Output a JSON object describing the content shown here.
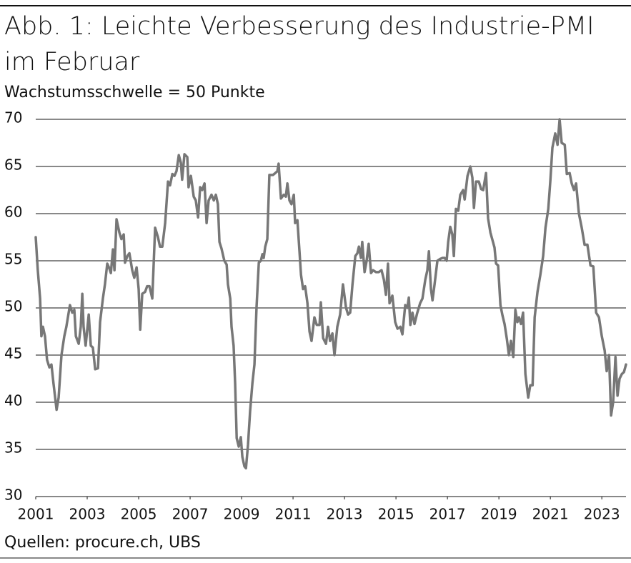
{
  "chart_data": {
    "type": "line",
    "title": "Abb. 1: Leichte Verbesserung des Industrie-PMI im Februar",
    "subtitle": "Wachstumsschwelle = 50 Punkte",
    "source": "Quellen: procure.ch, UBS",
    "color": "#777777",
    "grid": true,
    "xlim": [
      2001,
      2023.94
    ],
    "xticks": [
      2001,
      2003,
      2005,
      2007,
      2009,
      2011,
      2013,
      2015,
      2017,
      2019,
      2021,
      2023
    ],
    "ylim": [
      30,
      70
    ],
    "yticks": [
      30,
      35,
      40,
      45,
      50,
      55,
      60,
      65,
      70
    ],
    "x": [
      2001.0,
      2001.08,
      2001.17,
      2001.22,
      2001.28,
      2001.36,
      2001.44,
      2001.53,
      2001.61,
      2001.69,
      2001.81,
      2001.89,
      2002.0,
      2002.11,
      2002.19,
      2002.28,
      2002.33,
      2002.42,
      2002.5,
      2002.56,
      2002.67,
      2002.75,
      2002.81,
      2002.86,
      2002.94,
      2003.06,
      2003.14,
      2003.22,
      2003.31,
      2003.42,
      2003.5,
      2003.61,
      2003.69,
      2003.78,
      2003.86,
      2003.92,
      2004.0,
      2004.06,
      2004.14,
      2004.25,
      2004.33,
      2004.42,
      2004.47,
      2004.56,
      2004.64,
      2004.75,
      2004.83,
      2004.92,
      2005.0,
      2005.06,
      2005.14,
      2005.25,
      2005.33,
      2005.42,
      2005.53,
      2005.64,
      2005.75,
      2005.83,
      2005.92,
      2006.03,
      2006.14,
      2006.22,
      2006.31,
      2006.39,
      2006.47,
      2006.56,
      2006.64,
      2006.69,
      2006.78,
      2006.89,
      2006.94,
      2007.03,
      2007.14,
      2007.22,
      2007.31,
      2007.39,
      2007.47,
      2007.56,
      2007.64,
      2007.72,
      2007.83,
      2007.92,
      2008.0,
      2008.08,
      2008.14,
      2008.22,
      2008.33,
      2008.42,
      2008.47,
      2008.56,
      2008.61,
      2008.69,
      2008.75,
      2008.81,
      2008.89,
      2008.97,
      2009.03,
      2009.11,
      2009.17,
      2009.25,
      2009.33,
      2009.42,
      2009.5,
      2009.58,
      2009.67,
      2009.75,
      2009.81,
      2009.86,
      2009.92,
      2010.0,
      2010.08,
      2010.22,
      2010.31,
      2010.39,
      2010.44,
      2010.53,
      2010.64,
      2010.72,
      2010.78,
      2010.86,
      2010.94,
      2011.03,
      2011.08,
      2011.17,
      2011.25,
      2011.31,
      2011.39,
      2011.47,
      2011.56,
      2011.64,
      2011.72,
      2011.83,
      2011.92,
      2012.03,
      2012.08,
      2012.17,
      2012.28,
      2012.36,
      2012.44,
      2012.53,
      2012.61,
      2012.72,
      2012.83,
      2012.94,
      2013.06,
      2013.14,
      2013.22,
      2013.31,
      2013.42,
      2013.5,
      2013.56,
      2013.64,
      2013.69,
      2013.78,
      2013.86,
      2013.94,
      2014.03,
      2014.11,
      2014.22,
      2014.33,
      2014.44,
      2014.53,
      2014.61,
      2014.69,
      2014.75,
      2014.86,
      2014.97,
      2015.06,
      2015.17,
      2015.25,
      2015.36,
      2015.44,
      2015.5,
      2015.56,
      2015.64,
      2015.72,
      2015.83,
      2015.94,
      2016.03,
      2016.14,
      2016.22,
      2016.28,
      2016.36,
      2016.42,
      2016.5,
      2016.61,
      2016.72,
      2016.81,
      2016.89,
      2016.97,
      2017.03,
      2017.11,
      2017.19,
      2017.25,
      2017.33,
      2017.42,
      2017.5,
      2017.61,
      2017.67,
      2017.78,
      2017.89,
      2017.97,
      2018.03,
      2018.11,
      2018.22,
      2018.31,
      2018.39,
      2018.5,
      2018.58,
      2018.67,
      2018.75,
      2018.83,
      2018.89,
      2018.97,
      2019.06,
      2019.14,
      2019.22,
      2019.31,
      2019.39,
      2019.47,
      2019.56,
      2019.64,
      2019.72,
      2019.78,
      2019.86,
      2019.94,
      2020.03,
      2020.14,
      2020.22,
      2020.31,
      2020.39,
      2020.5,
      2020.61,
      2020.72,
      2020.81,
      2020.92,
      2021.0,
      2021.08,
      2021.19,
      2021.28,
      2021.36,
      2021.44,
      2021.56,
      2021.64,
      2021.75,
      2021.83,
      2021.92,
      2022.0,
      2022.11,
      2022.22,
      2022.33,
      2022.44,
      2022.56,
      2022.67,
      2022.78,
      2022.89,
      2023.0,
      2023.11,
      2023.19,
      2023.28,
      2023.36,
      2023.44,
      2023.53,
      2023.61,
      2023.69,
      2023.78,
      2023.86,
      2023.94
    ],
    "values": [
      57.5,
      54,
      51,
      47,
      48,
      47,
      44.5,
      43.7,
      44,
      42,
      39.2,
      40.5,
      45,
      47,
      48,
      49.5,
      50.3,
      49.5,
      49.8,
      47,
      46.2,
      48,
      51.5,
      48,
      46,
      49.3,
      46,
      45.8,
      43.5,
      43.6,
      48.5,
      51,
      52.5,
      54.7,
      54.2,
      53.7,
      56.2,
      54,
      59.4,
      58,
      57.3,
      57.8,
      54.8,
      55.5,
      55.8,
      54,
      53.2,
      54.3,
      52,
      47.7,
      51.5,
      51.7,
      52.3,
      52.3,
      51,
      58.5,
      57.5,
      56.5,
      56.5,
      59,
      63.4,
      63,
      64.2,
      64,
      64.5,
      66.2,
      65.4,
      63.6,
      66.3,
      66,
      62.8,
      64,
      61.8,
      61.4,
      59.6,
      62.8,
      62.5,
      63.2,
      59,
      61.4,
      62,
      61.4,
      62,
      61,
      57,
      56.3,
      55,
      54.6,
      52.5,
      51,
      48,
      46,
      42,
      36.2,
      35.3,
      36.3,
      34.2,
      33.2,
      33,
      35.5,
      39,
      42,
      44,
      50,
      54.8,
      55,
      55.7,
      55.3,
      56.5,
      57.3,
      64.1,
      64.1,
      64.3,
      64.5,
      65.3,
      61.6,
      62,
      61.8,
      63.2,
      61.4,
      61,
      62,
      59,
      59.3,
      56,
      53.5,
      52,
      52.3,
      50.5,
      47.5,
      46.5,
      49,
      48.2,
      48.2,
      50.6,
      46.8,
      46.2,
      48,
      46.5,
      47.3,
      45,
      48,
      49.3,
      52.5,
      50,
      49.3,
      49.5,
      52.5,
      55.5,
      55.8,
      56.5,
      55.3,
      57,
      53.8,
      55,
      56.8,
      53.7,
      54,
      53.8,
      53.8,
      54,
      53,
      51.4,
      54.7,
      50.5,
      51.3,
      48.5,
      47.8,
      48,
      47.2,
      50.3,
      50,
      51.1,
      48.2,
      49.5,
      48.3,
      49.5,
      50.5,
      51,
      53,
      54,
      56,
      52,
      50.8,
      52.5,
      55,
      55.2,
      55.3,
      55.3,
      55,
      57,
      58.6,
      57.8,
      55.5,
      60.5,
      60.3,
      62,
      62.5,
      61.5,
      64,
      65,
      63.8,
      60.6,
      63.4,
      63.4,
      62.6,
      62.5,
      64.3,
      59.5,
      58,
      57.2,
      56.4,
      54.7,
      54.5,
      50.3,
      49.2,
      48.3,
      46.7,
      45,
      46.5,
      44.8,
      49.8,
      48.5,
      49,
      48.3,
      49.5,
      43,
      40.5,
      41.8,
      41.8,
      49,
      51.7,
      53.5,
      55.5,
      58.5,
      60.5,
      63.5,
      67,
      68.5,
      67.3,
      70,
      67.5,
      67.3,
      64.2,
      64.3,
      63.2,
      62.5,
      63.2,
      60,
      58.5,
      56.7,
      56.7,
      54.5,
      54.4,
      49.5,
      49,
      47,
      45.5,
      43.3,
      45,
      38.6,
      40,
      44.8,
      40.7,
      42.5,
      43,
      43.2,
      44
    ]
  }
}
